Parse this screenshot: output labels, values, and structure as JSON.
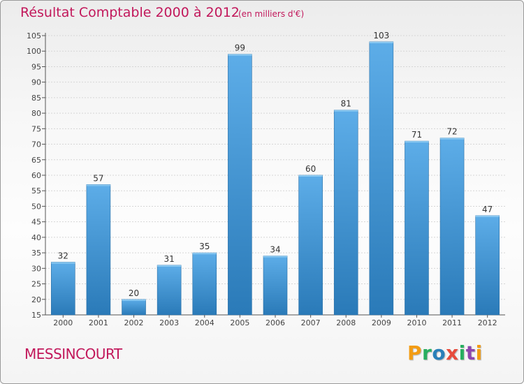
{
  "header": {
    "title": "Résultat Comptable 2000 à 2012",
    "subtitle": "(en milliers d'€)"
  },
  "footer": {
    "commune": "MESSINCOURT",
    "logo_text": "Proxiti",
    "logo_colors": [
      "#f39c12",
      "#27ae60",
      "#2980b9",
      "#e74c3c",
      "#27ae60",
      "#8e44ad",
      "#f39c12"
    ]
  },
  "colors": {
    "accent": "#c2185b",
    "bar_top": "#5dade8",
    "bar_bottom": "#2a7ab8"
  },
  "chart_data": {
    "type": "bar",
    "title": "Résultat Comptable 2000 à 2012",
    "subtitle": "(en milliers d'€)",
    "categories": [
      "2000",
      "2001",
      "2002",
      "2003",
      "2004",
      "2005",
      "2006",
      "2007",
      "2008",
      "2009",
      "2010",
      "2011",
      "2012"
    ],
    "values": [
      32,
      57,
      20,
      31,
      35,
      99,
      34,
      60,
      81,
      103,
      71,
      72,
      47
    ],
    "ylim": [
      15,
      105
    ],
    "yticks": [
      15,
      20,
      25,
      30,
      35,
      40,
      45,
      50,
      55,
      60,
      65,
      70,
      75,
      80,
      85,
      90,
      95,
      100,
      105
    ],
    "grid": true,
    "data_labels": true,
    "xlabel": "",
    "ylabel": ""
  }
}
